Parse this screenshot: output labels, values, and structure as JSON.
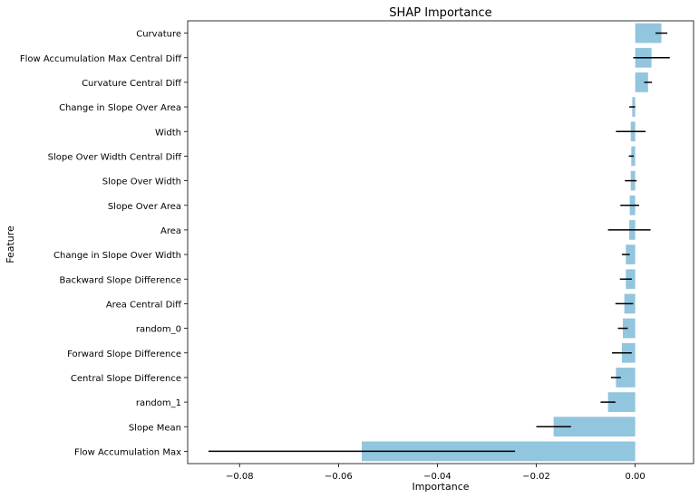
{
  "chart_data": {
    "type": "bar",
    "orientation": "horizontal",
    "title": "SHAP Importance",
    "xlabel": "Importance",
    "ylabel": "Feature",
    "xlim": [
      -0.0905,
      0.0118
    ],
    "x_ticks": [
      -0.08,
      -0.06,
      -0.04,
      -0.02,
      0.0
    ],
    "x_tick_labels": [
      "−0.08",
      "−0.06",
      "−0.04",
      "−0.02",
      "0.00"
    ],
    "grid": false,
    "legend": "none",
    "bar_color": "#92c5de",
    "error_bar_color": "#000000",
    "categories": [
      "Curvature",
      "Flow Accumulation Max Central Diff",
      "Curvature Central Diff",
      "Change in Slope Over Area",
      "Width",
      "Slope Over Width Central Diff",
      "Slope Over Width",
      "Slope Over Area",
      "Area",
      "Change in Slope Over Width",
      "Backward Slope Difference",
      "Area Central Diff",
      "random_0",
      "Forward Slope Difference",
      "Central Slope Difference",
      "random_1",
      "Slope Mean",
      "Flow Accumulation Max"
    ],
    "values": [
      0.0053,
      0.0033,
      0.0026,
      -0.0006,
      -0.0009,
      -0.0008,
      -0.0009,
      -0.0011,
      -0.0012,
      -0.0019,
      -0.0019,
      -0.0022,
      -0.0025,
      -0.0027,
      -0.0039,
      -0.0055,
      -0.0165,
      -0.0553
    ],
    "errors": [
      0.0012,
      0.0037,
      0.0008,
      0.0006,
      0.003,
      0.0005,
      0.0012,
      0.0019,
      0.0043,
      0.0008,
      0.0012,
      0.0018,
      0.001,
      0.002,
      0.001,
      0.0015,
      0.0035,
      0.031
    ]
  }
}
